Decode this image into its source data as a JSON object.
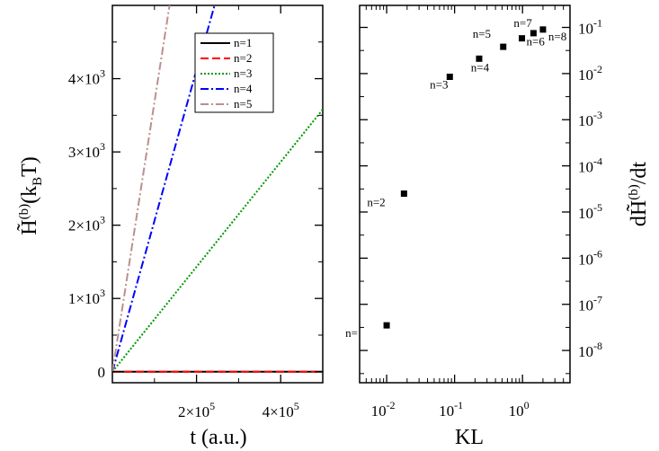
{
  "chart_data": [
    {
      "type": "line",
      "xlabel": "t (a.u.)",
      "ylabel": "H̃(b)(kBT)",
      "ylabel_main": "H̃",
      "ylabel_sup": "(b)",
      "ylabel_rest": "(k",
      "ylabel_sub": "B",
      "ylabel_end": "T)",
      "xlim": [
        0,
        500000
      ],
      "ylim": [
        -150,
        5000
      ],
      "x_ticks": [
        {
          "value": 200000,
          "mant": "2×10",
          "exp": "5"
        },
        {
          "value": 400000,
          "mant": "4×10",
          "exp": "5"
        }
      ],
      "y_ticks": [
        {
          "value": 0,
          "mant": "0",
          "exp": ""
        },
        {
          "value": 1000,
          "mant": "1×10",
          "exp": "3"
        },
        {
          "value": 2000,
          "mant": "2×10",
          "exp": "3"
        },
        {
          "value": 3000,
          "mant": "3×10",
          "exp": "3"
        },
        {
          "value": 4000,
          "mant": "4×10",
          "exp": "3"
        }
      ],
      "legend_position": "top-right",
      "series": [
        {
          "name": "n=1",
          "color": "#000000",
          "dash": "",
          "x": [
            0,
            500000
          ],
          "y": [
            0,
            0
          ]
        },
        {
          "name": "n=2",
          "color": "#ff0000",
          "dash": "9,4",
          "x": [
            0,
            500000
          ],
          "y": [
            0,
            0
          ]
        },
        {
          "name": "n=3",
          "color": "#009900",
          "dash": "2,2",
          "x": [
            0,
            500000
          ],
          "y": [
            0,
            3580
          ]
        },
        {
          "name": "n=4",
          "color": "#0000ff",
          "dash": "9,3,2,3",
          "x": [
            0,
            250000
          ],
          "y": [
            0,
            5150
          ]
        },
        {
          "name": "n=5",
          "color": "#bc8f8f",
          "dash": "9,3,2,3",
          "x": [
            0,
            140000
          ],
          "y": [
            0,
            5150
          ]
        }
      ]
    },
    {
      "type": "scatter",
      "xlabel": "KL",
      "ylabel": "dH̃(b)/dt",
      "ylabel_main": "dH̃",
      "ylabel_sup": "(b)",
      "ylabel_end": "/dt",
      "x_scale": "log",
      "y_scale": "log",
      "xlim": [
        0.004,
        5
      ],
      "ylim": [
        2e-09,
        0.3
      ],
      "x_ticks": [
        {
          "value": 0.01,
          "mant": "10",
          "exp": "-2"
        },
        {
          "value": 0.1,
          "mant": "10",
          "exp": "-1"
        },
        {
          "value": 1,
          "mant": "10",
          "exp": "0"
        }
      ],
      "y_ticks": [
        {
          "value": 0.1,
          "mant": "10",
          "exp": "-1"
        },
        {
          "value": 0.01,
          "mant": "10",
          "exp": "-2"
        },
        {
          "value": 0.001,
          "mant": "10",
          "exp": "-3"
        },
        {
          "value": 0.0001,
          "mant": "10",
          "exp": "-4"
        },
        {
          "value": 1e-05,
          "mant": "10",
          "exp": "-5"
        },
        {
          "value": 1e-06,
          "mant": "10",
          "exp": "-6"
        },
        {
          "value": 1e-07,
          "mant": "10",
          "exp": "-7"
        },
        {
          "value": 1e-08,
          "mant": "10",
          "exp": "-8"
        }
      ],
      "points": [
        {
          "label": "n=",
          "x": 0.01,
          "y": 3.5e-08
        },
        {
          "label": "n=2",
          "x": 0.018,
          "y": 2.5e-05
        },
        {
          "label": "n=3",
          "x": 0.085,
          "y": 0.0085
        },
        {
          "label": "n=4",
          "x": 0.23,
          "y": 0.021
        },
        {
          "label": "n=5",
          "x": 0.52,
          "y": 0.038
        },
        {
          "label": "n=6",
          "x": 0.98,
          "y": 0.058
        },
        {
          "label": "n=7",
          "x": 1.45,
          "y": 0.075
        },
        {
          "label": "n=8",
          "x": 2.0,
          "y": 0.09
        }
      ]
    }
  ]
}
